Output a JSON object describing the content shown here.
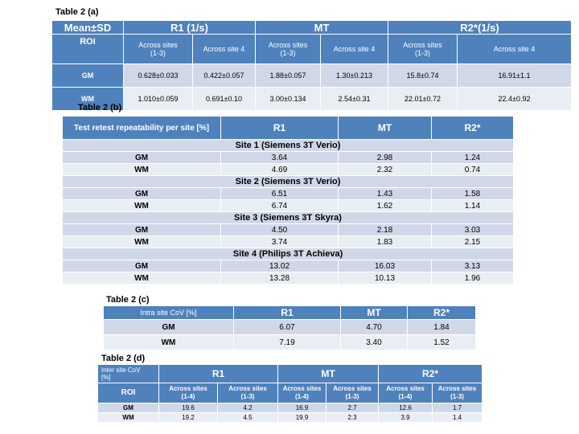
{
  "table_a": {
    "caption": "Table 2 (a)",
    "corner": "Mean±SD",
    "groups": [
      "R1 (1/s)",
      "MT",
      "R2*(1/s)"
    ],
    "roi_label": "ROI",
    "subheaders": [
      "Across sites\n(1-3)",
      "Across site 4",
      "Across sites\n(1-3)",
      "Across site 4",
      "Across sites\n(1-3)",
      "Across site 4"
    ],
    "rows": [
      {
        "roi": "GM",
        "cells": [
          "0.628±0.033",
          "0.422±0.057",
          "1.88±0.057",
          "1.30±0.213",
          "15.8±0.74",
          "16.91±1.1"
        ]
      },
      {
        "roi": "WM",
        "cells": [
          "1.010±0.059",
          "0.691±0.10",
          "3.00±0.134",
          "2.54±0.31",
          "22.01±0.72",
          "22.4±0.92"
        ]
      }
    ]
  },
  "table_b": {
    "caption": "Table 2 (b)",
    "header": [
      "Test retest repeatability per site [%]",
      "R1",
      "MT",
      "R2*"
    ],
    "sites": [
      {
        "name": "Site 1 (Siemens  3T Verio)",
        "rows": [
          {
            "roi": "GM",
            "cells": [
              "3.64",
              "2.98",
              "1.24"
            ]
          },
          {
            "roi": "WM",
            "cells": [
              "4.69",
              "2.32",
              "0.74"
            ]
          }
        ]
      },
      {
        "name": "Site 2 (Siemens 3T Verio)",
        "rows": [
          {
            "roi": "GM",
            "cells": [
              "6.51",
              "1.43",
              "1.58"
            ]
          },
          {
            "roi": "WM",
            "cells": [
              "6.74",
              "1.62",
              "1.14"
            ]
          }
        ]
      },
      {
        "name": "Site 3 (Siemens 3T Skyra)",
        "rows": [
          {
            "roi": "GM",
            "cells": [
              "4.50",
              "2.18",
              "3.03"
            ]
          },
          {
            "roi": "WM",
            "cells": [
              "3.74",
              "1.83",
              "2.15"
            ]
          }
        ]
      },
      {
        "name": "Site 4 (Philips 3T Achieva)",
        "rows": [
          {
            "roi": "GM",
            "cells": [
              "13.02",
              "16.03",
              "3.13"
            ]
          },
          {
            "roi": "WM",
            "cells": [
              "13.28",
              "10.13",
              "1.96"
            ]
          }
        ]
      }
    ]
  },
  "table_c": {
    "caption": "Table 2 (c)",
    "header": [
      "Intra site CoV [%]",
      "R1",
      "MT",
      "R2*"
    ],
    "rows": [
      {
        "roi": "GM",
        "cells": [
          "6.07",
          "4.70",
          "1.84"
        ]
      },
      {
        "roi": "WM",
        "cells": [
          "7.19",
          "3.40",
          "1.52"
        ]
      }
    ]
  },
  "table_d": {
    "caption": "Table 2 (d)",
    "corner": "Inter site CoV\n[%]",
    "groups": [
      "R1",
      "MT",
      "R2*"
    ],
    "roi_label": "ROI",
    "subheaders": [
      "Across sites\n(1-4)",
      "Across sites\n(1-3)",
      "Across sites\n(1-4)",
      "Across sites\n(1-3)",
      "Across sites\n(1-4)",
      "Across sites\n(1-3)"
    ],
    "rows": [
      {
        "roi": "GM",
        "cells": [
          "19.6",
          "4.2",
          "16.9",
          "2.7",
          "12.6",
          "1.7"
        ]
      },
      {
        "roi": "WM",
        "cells": [
          "19.2",
          "4.5",
          "19.9",
          "2.3",
          "3.9",
          "1.4"
        ]
      }
    ]
  }
}
